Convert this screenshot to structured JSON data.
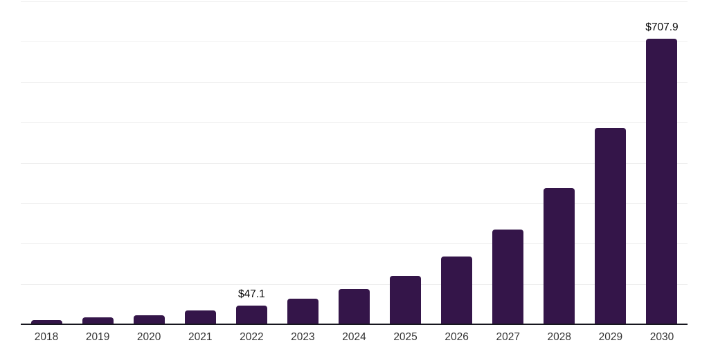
{
  "chart_data": {
    "type": "bar",
    "title": "",
    "xlabel": "",
    "ylabel": "",
    "categories": [
      "2018",
      "2019",
      "2020",
      "2021",
      "2022",
      "2023",
      "2024",
      "2025",
      "2026",
      "2027",
      "2028",
      "2029",
      "2030"
    ],
    "values": [
      11,
      17,
      23,
      34,
      47.1,
      64,
      87,
      120,
      168,
      235,
      337,
      487,
      707.9
    ],
    "bar_labels": [
      "",
      "",
      "",
      "",
      "$47.1",
      "",
      "",
      "",
      "",
      "",
      "",
      "",
      "$707.9"
    ],
    "ylim": [
      0,
      800
    ],
    "grid_step": 100,
    "grid": true,
    "legend": false,
    "colors": {
      "bar": "#341549",
      "axis_line": "#17171f",
      "gridline": "#efefef",
      "tick_label": "#333333",
      "data_label": "#0a0a0a",
      "background": "#ffffff"
    }
  }
}
